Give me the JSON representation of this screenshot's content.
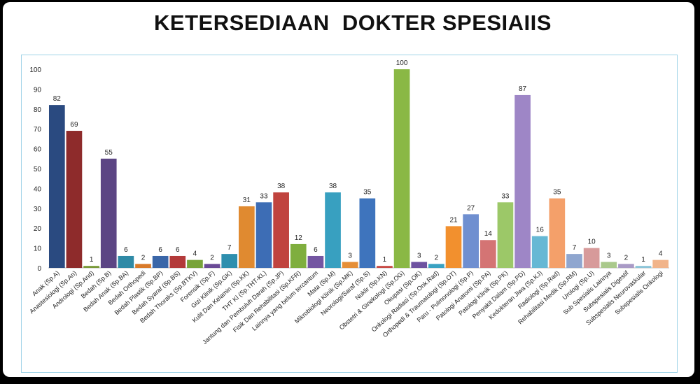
{
  "slide": {
    "title": "KETERSEDIAAN  DOKTER SPESIAIIS"
  },
  "chart_data": {
    "type": "bar",
    "title": "KETERSEDIAAN  DOKTER SPESIAIIS",
    "xlabel": "",
    "ylabel": "",
    "ylim": [
      0,
      100
    ],
    "yticks": [
      0,
      10,
      20,
      30,
      40,
      50,
      60,
      70,
      80,
      90,
      100
    ],
    "grid": false,
    "legend": "none",
    "categories": [
      "Anak (Sp.A)",
      "Anastesiologi (Sp.An)",
      "Andrologi (Sp.And)",
      "Bedah (Sp.B)",
      "Bedah Anak (Sp.BA)",
      "Bedah Orthopedi",
      "Bedah Plastik (Sp.BP)",
      "Bedah Syaraf (Sp.BS)",
      "Bedah Thoraks (Sp.BTKV)",
      "Forensik (Sp.F)",
      "Gizi Klinik (Sp.GK)",
      "Kulit Dan Kelamin (Sp.KK)",
      "THT Kl (Sp.THT-KL)",
      "Jantung dan Pembuluh Darah (Sp.JP)",
      "Fisik Dan Rehabilitasi (Sp.KFR)",
      "Lainnya yang belum tercantum",
      "Mata (Sp.M)",
      "Mikrobiologi Klinik (Sp.MK)",
      "Neorologi/Saraf (Sp.S)",
      "Nuklir (Sp.KN)",
      "Obstetri & Ginekologi (Sp.OG)",
      "Okupasi (Sp.OK)",
      "Onkologi Radiasi (Sp.Onk.Rad)",
      "Orthopedi & Traumatologi (Sp.OT)",
      "Paru - Pulmonologi (Sp.P)",
      "Patologi Anatomi (Sp.PA)",
      "Patologi Klinik (Sp.PK)",
      "Penyakit Dalam (Sp.PD)",
      "Kedokteran Jiwa (Sp.KJ)",
      "Radiologi (Sp.Rad)",
      "Rehabilitasi Medik (Sp.RM)",
      "Urologi (Sp.U)",
      "Sub Spesialis Lainnya",
      "Subspesialis Digestif",
      "Subspesialis Neurovaskular",
      "Subspesialis Onkologi"
    ],
    "values": [
      82,
      69,
      1,
      55,
      6,
      2,
      6,
      6,
      4,
      2,
      7,
      31,
      33,
      38,
      12,
      6,
      38,
      3,
      35,
      1,
      100,
      3,
      2,
      21,
      27,
      14,
      33,
      87,
      16,
      35,
      7,
      10,
      3,
      2,
      1,
      4
    ],
    "colors": [
      "#2a4a80",
      "#8e2b2b",
      "#7a9a3a",
      "#5c4584",
      "#2f8aa6",
      "#d97a2a",
      "#3a66a8",
      "#b33a3a",
      "#78a33a",
      "#6a4a96",
      "#2e8fae",
      "#e08a30",
      "#3d6db5",
      "#c0433e",
      "#7fae3e",
      "#7456a2",
      "#38a0c0",
      "#e58f38",
      "#3e74bd",
      "#c84a45",
      "#8ab845",
      "#6e52a0",
      "#3aa2c2",
      "#f2902e",
      "#6f8fd0",
      "#d47474",
      "#9cc868",
      "#9e86c6",
      "#66b8d4",
      "#f4a06a",
      "#8fa6cf",
      "#d79a9a",
      "#aac98c",
      "#a99ac6",
      "#8cc5d8",
      "#f1b48a"
    ]
  }
}
